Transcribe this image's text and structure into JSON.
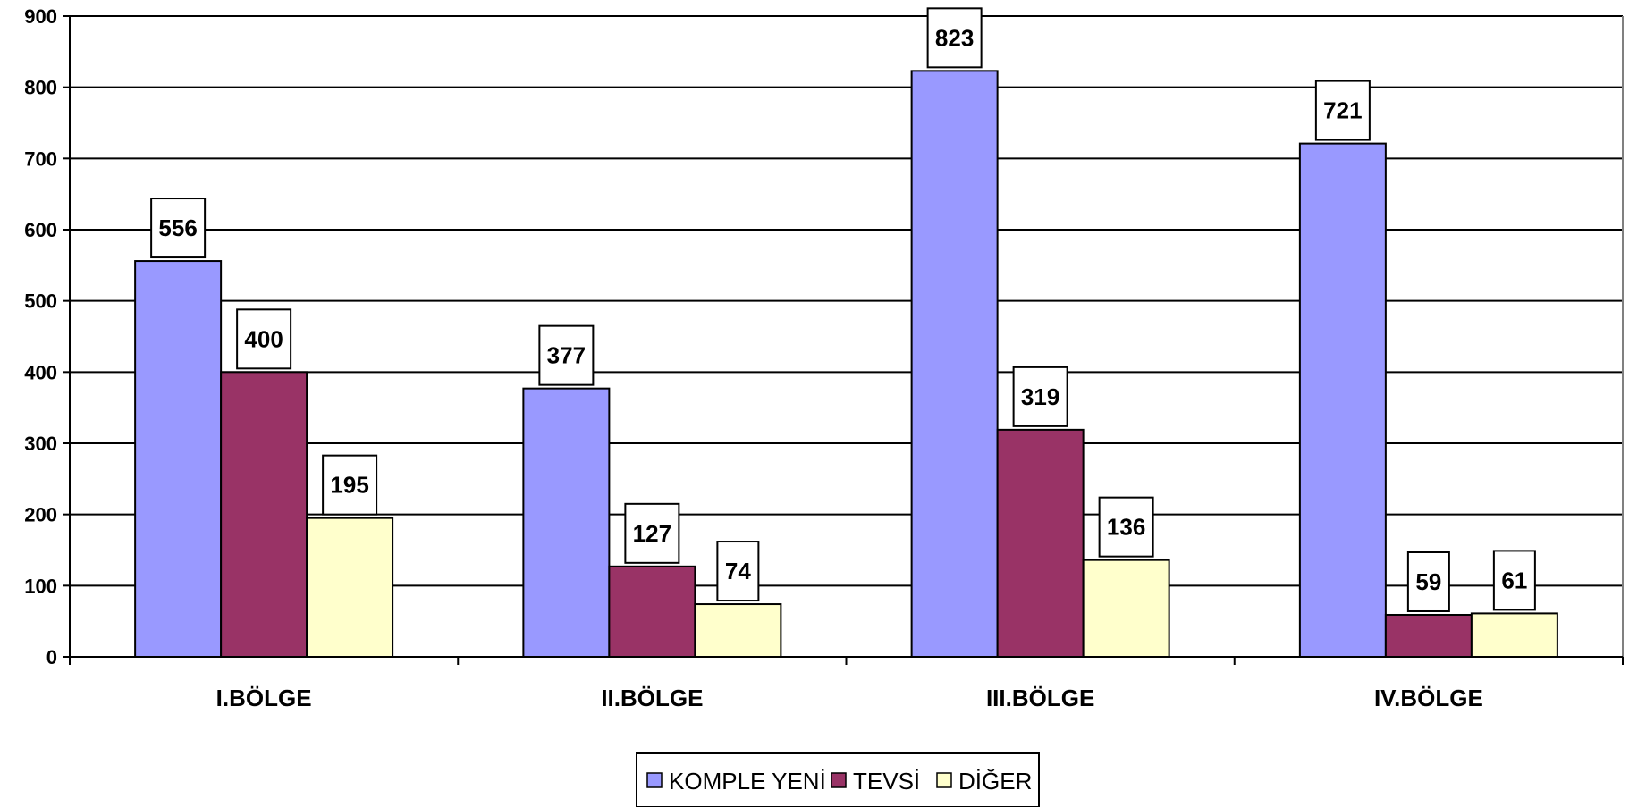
{
  "chart_data": {
    "type": "bar",
    "categories": [
      "I.BÖLGE",
      "II.BÖLGE",
      "III.BÖLGE",
      "IV.BÖLGE"
    ],
    "series": [
      {
        "name": "KOMPLE YENİ",
        "color": "#9999ff",
        "values": [
          556,
          377,
          823,
          721
        ]
      },
      {
        "name": "TEVSİ",
        "color": "#993366",
        "values": [
          400,
          127,
          319,
          59
        ]
      },
      {
        "name": "DİĞER",
        "color": "#ffffcc",
        "values": [
          195,
          74,
          136,
          61
        ]
      }
    ],
    "ylim": [
      0,
      900
    ],
    "yticks": [
      0,
      100,
      200,
      300,
      400,
      500,
      600,
      700,
      800,
      900
    ],
    "grid": true,
    "legend": "bottom-center",
    "title": "",
    "xlabel": "",
    "ylabel": ""
  }
}
